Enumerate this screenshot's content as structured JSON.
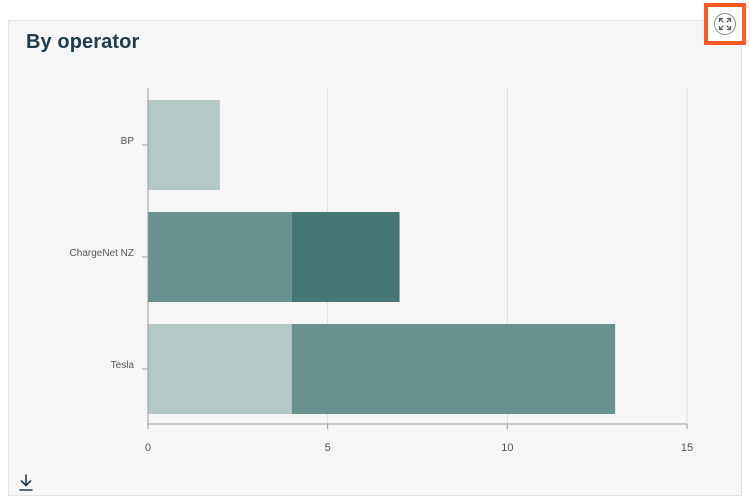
{
  "card": {
    "title": "By operator"
  },
  "icons": {
    "expand": "expand-icon",
    "download": "download-icon"
  },
  "colors": {
    "light": "#b4c8c6",
    "mid": "#69918f",
    "dark": "#467675",
    "grid": "#dddddd",
    "axis": "#999999"
  },
  "chart_data": {
    "type": "bar",
    "orientation": "horizontal",
    "stacked": true,
    "title": "By operator",
    "categories": [
      "BP",
      "ChargeNet NZ",
      "Tesla"
    ],
    "segments": [
      [
        {
          "value": 2,
          "color": "#b4c8c6"
        }
      ],
      [
        {
          "value": 4,
          "color": "#69918f"
        },
        {
          "value": 3,
          "color": "#467675"
        }
      ],
      [
        {
          "value": 4,
          "color": "#b4c8c6"
        },
        {
          "value": 9,
          "color": "#69918f"
        }
      ]
    ],
    "totals": [
      2,
      7,
      13
    ],
    "xlim": [
      0,
      15
    ],
    "xticks": [
      0,
      5,
      10,
      15
    ],
    "grid": true
  }
}
